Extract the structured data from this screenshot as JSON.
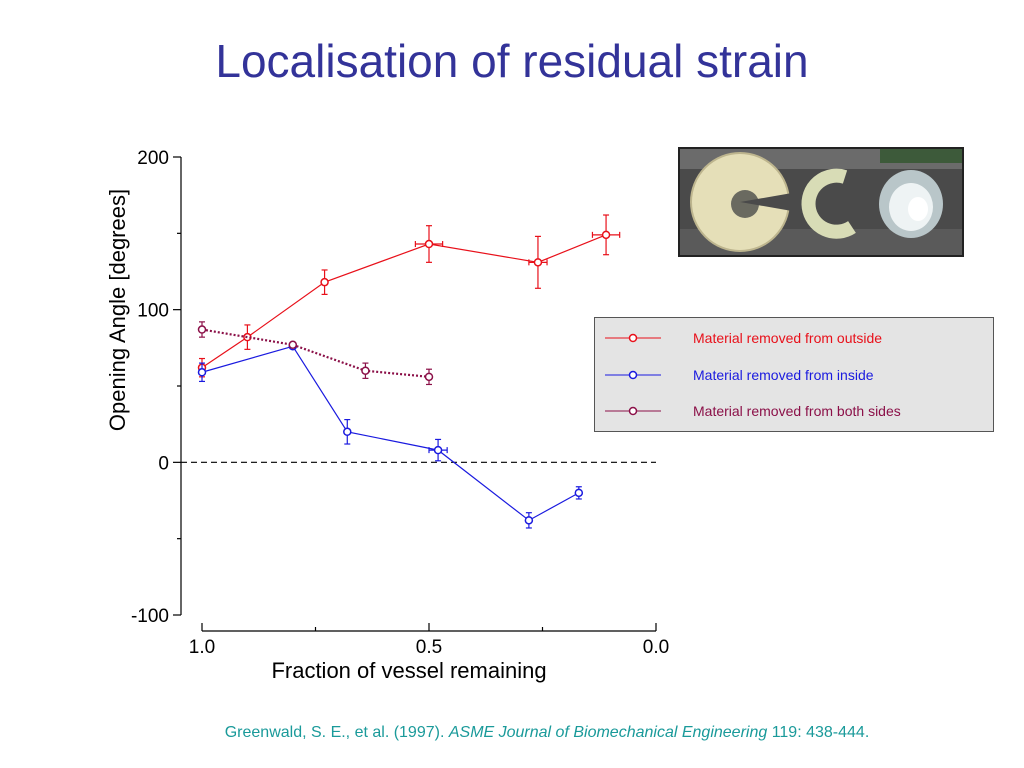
{
  "slide": {
    "title": "Localisation of residual strain",
    "citation": {
      "authors": "Greenwald, S. E., et al. (1997). ",
      "journal": "ASME Journal of Biomechanical Engineering",
      "rest": " 119: 438-444."
    }
  },
  "photo": {
    "description_icon": "vessel-ring-photo-icon",
    "colors": {
      "bg": "#4a4a4a",
      "ring": "#e8e2bd",
      "clear": "#c9d6d8"
    }
  },
  "chart_data": {
    "type": "line",
    "title": "",
    "xlabel": "Fraction of vessel remaining",
    "ylabel": "Opening Angle [degrees]",
    "xlim": [
      1.0,
      0.0
    ],
    "ylim": [
      -100,
      200
    ],
    "x_ticks": [
      "1.0",
      "0.5",
      "0.0"
    ],
    "y_ticks": [
      "200",
      "100",
      "0",
      "-100"
    ],
    "reference_line": {
      "y": 0,
      "style": "dashed",
      "color": "#000000"
    },
    "legend": "right",
    "series": [
      {
        "name": "Material removed from outside",
        "color": "#e8101a",
        "style": "solid",
        "points": [
          {
            "x": 1.0,
            "y": 62,
            "yerr": 6,
            "xerr": 0
          },
          {
            "x": 0.9,
            "y": 82,
            "yerr": 8,
            "xerr": 0
          },
          {
            "x": 0.73,
            "y": 118,
            "yerr": 8,
            "xerr": 0
          },
          {
            "x": 0.5,
            "y": 143,
            "yerr": 12,
            "xerr": 0.03
          },
          {
            "x": 0.26,
            "y": 131,
            "yerr": 17,
            "xerr": 0.02
          },
          {
            "x": 0.11,
            "y": 149,
            "yerr": 13,
            "xerr": 0.03
          }
        ]
      },
      {
        "name": "Material removed from inside",
        "color": "#1a1adf",
        "style": "solid",
        "points": [
          {
            "x": 1.0,
            "y": 59,
            "yerr": 6,
            "xerr": 0
          },
          {
            "x": 0.8,
            "y": 76,
            "yerr": 0,
            "xerr": 0
          },
          {
            "x": 0.68,
            "y": 20,
            "yerr": 8,
            "xerr": 0
          },
          {
            "x": 0.48,
            "y": 8,
            "yerr": 7,
            "xerr": 0.02
          },
          {
            "x": 0.28,
            "y": -38,
            "yerr": 5,
            "xerr": 0
          },
          {
            "x": 0.17,
            "y": -20,
            "yerr": 4,
            "xerr": 0
          }
        ]
      },
      {
        "name": "Material removed from both sides",
        "color": "#8b1048",
        "style": "dotted",
        "points": [
          {
            "x": 1.0,
            "y": 87,
            "yerr": 5,
            "xerr": 0
          },
          {
            "x": 0.8,
            "y": 77,
            "yerr": 0,
            "xerr": 0
          },
          {
            "x": 0.64,
            "y": 60,
            "yerr": 5,
            "xerr": 0
          },
          {
            "x": 0.5,
            "y": 56,
            "yerr": 5,
            "xerr": 0
          }
        ]
      }
    ]
  }
}
